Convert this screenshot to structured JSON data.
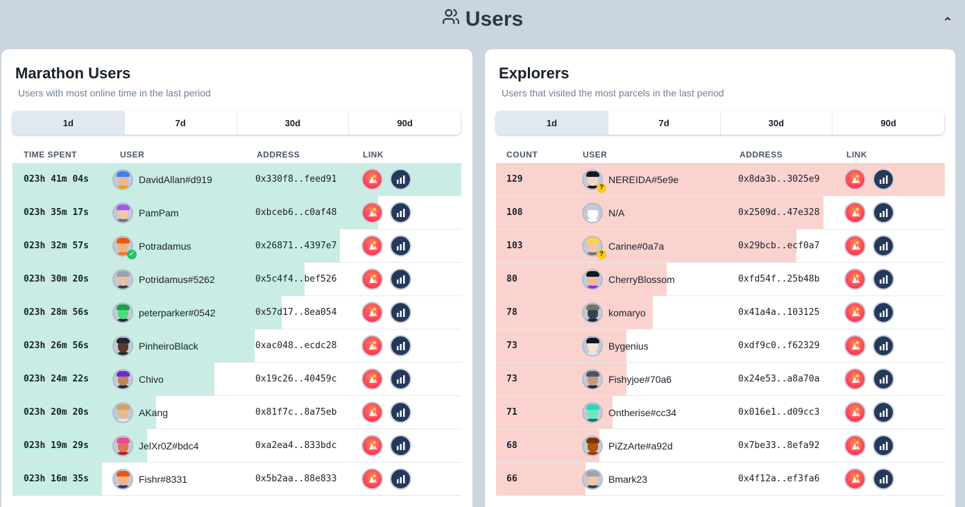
{
  "header": {
    "title": "Users",
    "icon": "users-icon",
    "collapse_icon": "chevron-up-icon"
  },
  "colors": {
    "marathon_bar": "#c9ede4",
    "explorer_bar": "#fbd3ce",
    "link_decentraland": "#ff2d55",
    "link_stats": "#24395c"
  },
  "marathon": {
    "title": "Marathon Users",
    "subtitle": "Users with most online time in the last period",
    "tabs": [
      {
        "label": "1d",
        "active": true
      },
      {
        "label": "7d",
        "active": false
      },
      {
        "label": "30d",
        "active": false
      },
      {
        "label": "90d",
        "active": false
      }
    ],
    "columns": {
      "metric": "TIME SPENT",
      "user": "USER",
      "address": "ADDRESS",
      "link": "LINK"
    },
    "rows": [
      {
        "metric": "023h 41m 04s",
        "user": "DavidAllan#d919",
        "address": "0x330f8..feed91",
        "bar_fraction": 1.0,
        "face": "#e8b796",
        "hat": "#3b82f6",
        "body": "#f59e0b",
        "badge": ""
      },
      {
        "metric": "023h 35m 17s",
        "user": "PamPam",
        "address": "0xbceb6..c0af48",
        "bar_fraction": 0.815,
        "face": "#f1c7a6",
        "hat": "#a855f7",
        "body": "#6b7280",
        "badge": ""
      },
      {
        "metric": "023h 32m 57s",
        "user": "Potradamus",
        "address": "0x26871..4397e7",
        "bar_fraction": 0.73,
        "face": "#f0b083",
        "hat": "#ea580c",
        "body": "#f97316",
        "badge": "check"
      },
      {
        "metric": "023h 30m 20s",
        "user": "Potridamus#5262",
        "address": "0x5c4f4..bef526",
        "bar_fraction": 0.65,
        "face": "#e7c3a4",
        "hat": "#9ca3af",
        "body": "#374151",
        "badge": ""
      },
      {
        "metric": "023h 28m 56s",
        "user": "peterparker#0542",
        "address": "0x57d17..8ea054",
        "bar_fraction": 0.6,
        "face": "#4ade80",
        "hat": "#16a34a",
        "body": "#1f2937",
        "badge": ""
      },
      {
        "metric": "023h 26m 56s",
        "user": "PinheiroBlack",
        "address": "0xac048..ecdc28",
        "bar_fraction": 0.54,
        "face": "#5b3a29",
        "hat": "#1f2937",
        "body": "#1f2937",
        "badge": ""
      },
      {
        "metric": "023h 24m 22s",
        "user": "Chivo",
        "address": "0x19c26..40459c",
        "bar_fraction": 0.45,
        "face": "#c08457",
        "hat": "#6d28d9",
        "body": "#1f2937",
        "badge": ""
      },
      {
        "metric": "023h 20m 20s",
        "user": "AKang",
        "address": "0x81f7c..8a75eb",
        "bar_fraction": 0.32,
        "face": "#e6b991",
        "hat": "#d6a15f",
        "body": "#e5e7eb",
        "badge": ""
      },
      {
        "metric": "023h 19m 29s",
        "user": "JelXr0Z#bdc4",
        "address": "0xa2ea4..833bdc",
        "bar_fraction": 0.3,
        "face": "#d97757",
        "hat": "#ec4899",
        "body": "#b91c1c",
        "badge": ""
      },
      {
        "metric": "023h 16m 35s",
        "user": "Fishr#8331",
        "address": "0x5b2aa..88e833",
        "bar_fraction": 0.2,
        "face": "#f0b483",
        "hat": "#ea580c",
        "body": "#1e3a8a",
        "badge": ""
      }
    ]
  },
  "explorers": {
    "title": "Explorers",
    "subtitle": "Users that visited the most parcels in the last period",
    "tabs": [
      {
        "label": "1d",
        "active": true
      },
      {
        "label": "7d",
        "active": false
      },
      {
        "label": "30d",
        "active": false
      },
      {
        "label": "90d",
        "active": false
      }
    ],
    "columns": {
      "metric": "COUNT",
      "user": "USER",
      "address": "ADDRESS",
      "link": "LINK"
    },
    "rows": [
      {
        "metric": "129",
        "user": "NEREIDA#5e9e",
        "address": "0x8da3b..3025e9",
        "bar_fraction": 1.0,
        "face": "#f3d5c0",
        "hat": "#111827",
        "body": "#111827",
        "badge": "q"
      },
      {
        "metric": "108",
        "user": "N/A",
        "address": "0x2509d..47e328",
        "bar_fraction": 0.73,
        "face": "#ffffff",
        "hat": "#c3cad6",
        "body": "#ffffff",
        "badge": ""
      },
      {
        "metric": "103",
        "user": "Carine#0a7a",
        "address": "0x29bcb..ecf0a7",
        "bar_fraction": 0.67,
        "face": "#f1c7a6",
        "hat": "#fcd34d",
        "body": "#6b7280",
        "badge": "q"
      },
      {
        "metric": "80",
        "user": "CherryBlossom",
        "address": "0xfd54f..25b48b",
        "bar_fraction": 0.38,
        "face": "#f1b89a",
        "hat": "#111827",
        "body": "#7c3aed",
        "badge": ""
      },
      {
        "metric": "78",
        "user": "komaryo",
        "address": "0x41a4a..103125",
        "bar_fraction": 0.35,
        "face": "#374151",
        "hat": "#78716c",
        "body": "#1f2937",
        "badge": ""
      },
      {
        "metric": "73",
        "user": "Bygenius",
        "address": "0xdf9c0..f62329",
        "bar_fraction": 0.29,
        "face": "#f8e1cf",
        "hat": "#111827",
        "body": "#e5e7eb",
        "badge": ""
      },
      {
        "metric": "73",
        "user": "Fishyjoe#70a6",
        "address": "0x24e53..a8a70a",
        "bar_fraction": 0.29,
        "face": "#c89673",
        "hat": "#4b5563",
        "body": "#1f2937",
        "badge": ""
      },
      {
        "metric": "71",
        "user": "Ontherise#cc34",
        "address": "0x016e1..d09cc3",
        "bar_fraction": 0.26,
        "face": "#6ee7b7",
        "hat": "#2dd4bf",
        "body": "#0f766e",
        "badge": ""
      },
      {
        "metric": "68",
        "user": "PiZzArte#a92d",
        "address": "0x7be33..8efa92",
        "bar_fraction": 0.23,
        "face": "#b45309",
        "hat": "#78350f",
        "body": "#92400e",
        "badge": ""
      },
      {
        "metric": "66",
        "user": "Bmark23",
        "address": "0x4f12a..ef3fa6",
        "bar_fraction": 0.2,
        "face": "#f1c7a6",
        "hat": "#9ca3af",
        "body": "#374151",
        "badge": ""
      }
    ]
  }
}
